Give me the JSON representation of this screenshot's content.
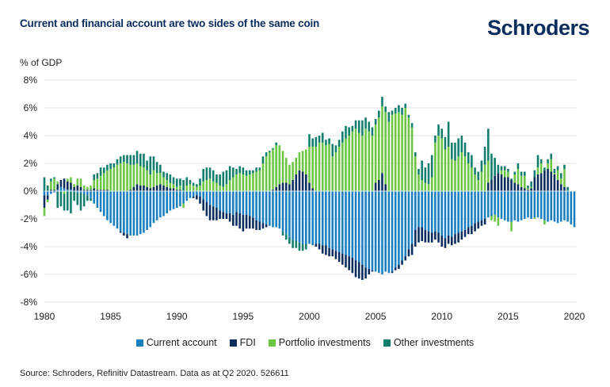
{
  "title": "Current and financial account are two sides of the same coin",
  "brand": "Schroders",
  "source": "Source: Schroders, Refinitiv Datastream. Data as at Q2 2020. 526611",
  "chart_data": {
    "type": "bar",
    "stacked": true,
    "title": "Current and financial account are two sides of the same coin",
    "ylabel": "% of GDP",
    "xlabel": "",
    "ylim": [
      -8,
      8
    ],
    "yticks": [
      8,
      6,
      4,
      2,
      0,
      -2,
      -4,
      -6,
      -8
    ],
    "ytick_labels": [
      "8%",
      "6%",
      "4%",
      "2%",
      "0%",
      "-2%",
      "-4%",
      "-6%",
      "-8%"
    ],
    "xticks": [
      "1980",
      "1985",
      "1990",
      "1995",
      "2000",
      "2005",
      "2010",
      "2015",
      "2020"
    ],
    "x_start": 1980,
    "frequency": "quarterly",
    "grid": true,
    "legend": "bottom",
    "colors": {
      "Current account": "#1a7fc1",
      "FDI": "#0b2d5e",
      "Portfolio investments": "#6cc644",
      "Other investments": "#137e6e"
    },
    "series": [
      {
        "name": "Current account",
        "values": [
          -0.3,
          -0.3,
          -0.2,
          -0.1,
          0.1,
          0.3,
          0.2,
          0.1,
          0.1,
          0.0,
          -0.1,
          -0.1,
          -0.2,
          -0.3,
          -0.5,
          -0.9,
          -1.2,
          -1.5,
          -1.8,
          -2.1,
          -2.3,
          -2.5,
          -2.7,
          -2.9,
          -3.0,
          -3.1,
          -3.2,
          -3.2,
          -3.2,
          -3.1,
          -3.0,
          -2.8,
          -2.6,
          -2.3,
          -2.1,
          -1.9,
          -1.8,
          -1.6,
          -1.4,
          -1.3,
          -1.2,
          -1.1,
          -0.9,
          -0.7,
          -0.5,
          -0.4,
          -0.3,
          -0.4,
          -0.6,
          -0.8,
          -1.0,
          -1.1,
          -1.2,
          -1.4,
          -1.5,
          -1.6,
          -1.6,
          -1.7,
          -1.5,
          -1.6,
          -1.7,
          -1.7,
          -1.8,
          -1.9,
          -2.1,
          -2.2,
          -2.3,
          -2.4,
          -2.5,
          -2.6,
          -2.6,
          -2.7,
          -2.9,
          -3.1,
          -3.3,
          -3.5,
          -3.6,
          -3.7,
          -3.8,
          -3.8,
          -3.8,
          -3.9,
          -3.8,
          -3.8,
          -3.9,
          -3.9,
          -4.1,
          -4.2,
          -4.3,
          -4.4,
          -4.5,
          -4.6,
          -4.7,
          -4.8,
          -5.0,
          -5.1,
          -5.3,
          -5.5,
          -5.6,
          -5.7,
          -5.8,
          -5.9,
          -6.0,
          -5.8,
          -5.9,
          -5.8,
          -5.5,
          -5.3,
          -5.0,
          -4.7,
          -4.2,
          -3.8,
          -2.8,
          -2.6,
          -2.6,
          -2.8,
          -2.9,
          -3.0,
          -2.9,
          -3.0,
          -3.2,
          -3.4,
          -3.2,
          -3.3,
          -3.1,
          -3.0,
          -2.9,
          -2.8,
          -2.6,
          -2.5,
          -2.3,
          -2.2,
          -2.1,
          -2.0,
          -1.9,
          -1.8,
          -1.7,
          -1.9,
          -2.0,
          -2.1,
          -2.2,
          -2.2,
          -2.1,
          -2.2,
          -2.1,
          -2.0,
          -1.9,
          -2.0,
          -1.9,
          -1.9,
          -2.0,
          -2.1,
          -2.2,
          -2.1,
          -2.2,
          -2.3,
          -2.2,
          -2.1,
          -2.2,
          -2.4,
          -2.6
        ]
      },
      {
        "name": "FDI",
        "values": [
          -0.9,
          -0.3,
          0.1,
          0.1,
          0.4,
          0.5,
          0.7,
          0.6,
          0.5,
          0.3,
          0.4,
          0.3,
          0.1,
          0.1,
          0.1,
          0.2,
          0.1,
          0.1,
          0.1,
          0.1,
          0.0,
          0.0,
          0.0,
          -0.1,
          -0.2,
          -0.3,
          0.1,
          0.3,
          0.5,
          0.4,
          0.4,
          0.3,
          0.2,
          0.3,
          0.4,
          0.5,
          0.4,
          0.3,
          0.2,
          0.2,
          0.1,
          0.1,
          0.0,
          0.0,
          0.0,
          -0.1,
          -0.3,
          -0.5,
          -0.8,
          -1.0,
          -1.1,
          -1.0,
          -0.9,
          -0.6,
          -0.5,
          -0.4,
          -0.6,
          -0.8,
          -1.0,
          -1.1,
          -1.2,
          -1.0,
          -0.9,
          -0.8,
          -0.7,
          -0.6,
          -0.4,
          -0.2,
          0.0,
          0.1,
          0.3,
          0.5,
          0.6,
          0.6,
          0.5,
          0.8,
          1.2,
          1.5,
          1.4,
          1.2,
          0.6,
          0.2,
          -0.2,
          -0.4,
          -0.6,
          -0.7,
          -0.6,
          -0.5,
          -0.6,
          -0.7,
          -0.8,
          -0.9,
          -1.0,
          -1.1,
          -1.2,
          -1.2,
          -1.1,
          -0.8,
          -0.4,
          -0.1,
          0.6,
          0.8,
          1.3,
          0.5,
          0.0,
          -0.1,
          -0.2,
          -0.3,
          -0.3,
          -0.3,
          -0.5,
          -0.8,
          -1.2,
          -1.1,
          -1.0,
          -0.9,
          -0.8,
          -0.7,
          -0.6,
          -0.7,
          -0.8,
          -0.7,
          -0.6,
          -0.6,
          -0.7,
          -0.7,
          -0.6,
          -0.5,
          -0.5,
          -0.6,
          -0.6,
          -0.5,
          -0.4,
          -0.4,
          0.6,
          0.8,
          1.1,
          1.3,
          1.2,
          1.0,
          1.0,
          0.8,
          0.6,
          0.5,
          0.3,
          0.2,
          0.1,
          0.2,
          1.0,
          1.2,
          1.3,
          1.5,
          1.6,
          1.4,
          1.2,
          0.8,
          0.5,
          0.3
        ]
      },
      {
        "name": "Portfolio investments",
        "values": [
          -0.6,
          -0.2,
          0.6,
          0.8,
          0.2,
          0.0,
          -0.2,
          0.2,
          0.4,
          0.2,
          0.5,
          0.6,
          0.3,
          0.2,
          0.3,
          0.6,
          0.8,
          1.0,
          1.2,
          1.4,
          1.6,
          1.7,
          1.9,
          2.0,
          2.1,
          2.0,
          1.8,
          1.6,
          1.5,
          1.4,
          1.3,
          1.2,
          1.0,
          1.2,
          0.9,
          0.8,
          0.6,
          0.5,
          0.4,
          0.3,
          0.2,
          0.3,
          -0.3,
          0.4,
          0.5,
          0.4,
          0.3,
          0.4,
          0.7,
          0.8,
          0.9,
          0.7,
          0.6,
          0.4,
          0.3,
          0.5,
          0.8,
          1.0,
          1.2,
          1.3,
          1.2,
          1.1,
          1.2,
          1.3,
          1.4,
          1.5,
          2.0,
          2.5,
          2.8,
          2.9,
          3.0,
          2.8,
          2.3,
          1.8,
          1.4,
          1.3,
          1.2,
          1.3,
          1.5,
          1.8,
          2.6,
          3.0,
          3.2,
          3.5,
          3.5,
          3.3,
          3.4,
          2.5,
          2.8,
          3.2,
          3.5,
          3.8,
          4.0,
          4.3,
          4.5,
          4.2,
          4.0,
          4.5,
          4.3,
          4.0,
          4.2,
          4.5,
          4.8,
          5.2,
          5.0,
          5.5,
          5.6,
          5.7,
          5.5,
          6.0,
          5.3,
          4.6,
          2.5,
          1.2,
          0.8,
          0.6,
          0.5,
          1.0,
          3.5,
          4.0,
          3.8,
          3.0,
          3.2,
          2.3,
          2.2,
          2.5,
          2.8,
          2.5,
          2.0,
          1.7,
          1.2,
          0.8,
          1.4,
          1.9,
          1.6,
          -0.3,
          -0.5,
          -0.6,
          0.3,
          0.5,
          0.4,
          -0.7,
          0.6,
          1.1,
          0.8,
          0.9,
          0.1,
          0.1,
          -0.1,
          0.5,
          0.7,
          -0.3,
          0.4,
          0.9,
          0.1,
          0.7,
          0.4,
          1.3
        ]
      },
      {
        "name": "Other investments",
        "values": [
          1.0,
          0.4,
          0.2,
          0.1,
          -1.2,
          -1.1,
          -1.2,
          -1.4,
          -1.6,
          -0.7,
          -0.9,
          -1.3,
          -0.9,
          -0.4,
          -0.2,
          0.4,
          0.4,
          0.6,
          0.4,
          0.4,
          0.4,
          0.3,
          0.4,
          0.5,
          0.5,
          0.6,
          0.7,
          0.7,
          0.9,
          0.9,
          1.0,
          0.7,
          1.3,
          1.0,
          0.8,
          0.6,
          0.4,
          0.5,
          0.6,
          0.5,
          0.6,
          0.5,
          0.8,
          0.6,
          0.3,
          0.2,
          0.2,
          0.5,
          0.9,
          0.9,
          0.8,
          0.8,
          0.6,
          0.8,
          1.1,
          1.0,
          1.0,
          0.7,
          0.4,
          0.5,
          0.5,
          0.4,
          0.3,
          0.2,
          0.3,
          0.2,
          0.5,
          0.3,
          0.1,
          0.1,
          0.2,
          0.0,
          -0.3,
          -0.4,
          -0.5,
          -0.6,
          -0.5,
          -0.6,
          -0.5,
          -0.4,
          0.9,
          0.6,
          0.7,
          0.5,
          0.7,
          0.4,
          0.4,
          0.9,
          0.5,
          0.5,
          0.8,
          0.9,
          0.6,
          0.4,
          0.6,
          0.9,
          1.1,
          0.8,
          0.7,
          0.6,
          0.4,
          0.5,
          0.7,
          0.4,
          0.7,
          0.3,
          0.4,
          0.5,
          0.5,
          0.3,
          0.2,
          0.3,
          0.3,
          0.4,
          1.4,
          1.1,
          1.5,
          1.6,
          0.5,
          0.8,
          0.7,
          0.9,
          1.8,
          1.2,
          1.3,
          1.3,
          1.2,
          1.0,
          0.8,
          0.9,
          0.5,
          0.6,
          0.8,
          1.3,
          2.3,
          1.9,
          1.3,
          0.6,
          0.3,
          0.3,
          0.2,
          0.1,
          0.2,
          0.4,
          0.3,
          0.3,
          0.2,
          0.4,
          0.5,
          0.9,
          0.3,
          0.2,
          0.3,
          0.4,
          0.3,
          0.3,
          0.4,
          0.3,
          0.3
        ]
      }
    ]
  }
}
